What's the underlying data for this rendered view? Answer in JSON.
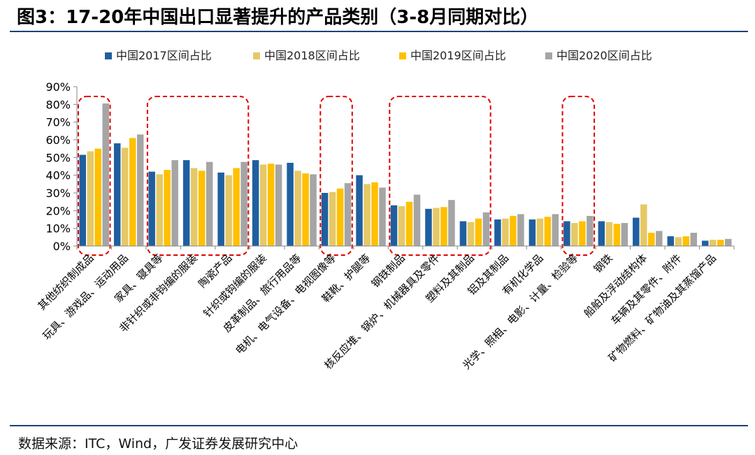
{
  "header": {
    "title": "图3：17-20年中国出口显著提升的产品类别（3-8月同期对比）"
  },
  "footer": {
    "source": "数据来源：ITC，Wind，广发证券发展研究中心"
  },
  "chart_data": {
    "type": "bar",
    "title": "图3：17-20年中国出口显著提升的产品类别（3-8月同期对比）",
    "xlabel": "",
    "ylabel": "",
    "ylim": [
      0,
      90
    ],
    "yticks": [
      "0%",
      "10%",
      "20%",
      "30%",
      "40%",
      "50%",
      "60%",
      "70%",
      "80%",
      "90%"
    ],
    "grid": false,
    "legend_position": "top",
    "colors": [
      "#1f5f9f",
      "#e6c866",
      "#ffc000",
      "#a5a5a5"
    ],
    "highlight_color": "#e00000",
    "categories": [
      "其他纺织制成品",
      "玩具、游戏品、运动用品",
      "家具、寝具等",
      "非针织或非钩编的服装",
      "陶瓷产品",
      "针织或钩编的服装",
      "皮革制品、旅行用品等",
      "电机、电气设备、电视图像等",
      "鞋靴、护腿等",
      "钢铁制品",
      "核反应堆、锅炉、机械器具及零件",
      "塑料及其制品",
      "铝及其制品",
      "有机化学品",
      "光学、照相、电影、计量、检验等",
      "钢铁",
      "船舶及浮动结构体",
      "车辆及其零件、附件",
      "矿物燃料、矿物油及其蒸馏产品"
    ],
    "series": [
      {
        "name": "中国2017区间占比",
        "values": [
          51.5,
          58,
          42,
          48.5,
          41.5,
          48.5,
          47,
          30,
          40,
          23,
          21,
          14,
          15,
          15,
          14,
          14,
          16,
          5.5,
          3
        ]
      },
      {
        "name": "中国2018区间占比",
        "values": [
          53.5,
          55.5,
          40.5,
          44,
          40,
          46,
          42.5,
          30.5,
          35,
          22.5,
          21.5,
          13.5,
          15.5,
          15.5,
          13,
          13.5,
          23.5,
          5,
          3.5
        ]
      },
      {
        "name": "中国2019区间占比",
        "values": [
          55,
          61,
          43,
          42.5,
          44,
          46.5,
          41,
          32.5,
          36,
          25,
          22,
          15.5,
          17,
          16.5,
          14,
          12.5,
          7.5,
          5.5,
          3.5
        ]
      },
      {
        "name": "中国2020区间占比",
        "values": [
          80.5,
          63,
          48.5,
          47.5,
          47.5,
          46,
          40.5,
          35.5,
          33,
          29,
          26,
          19,
          18,
          18,
          17,
          13,
          8.5,
          7.5,
          4
        ]
      }
    ],
    "highlight_groups": [
      [
        0,
        0
      ],
      [
        2,
        4
      ],
      [
        7,
        7
      ],
      [
        9,
        11
      ],
      [
        14,
        14
      ]
    ]
  }
}
